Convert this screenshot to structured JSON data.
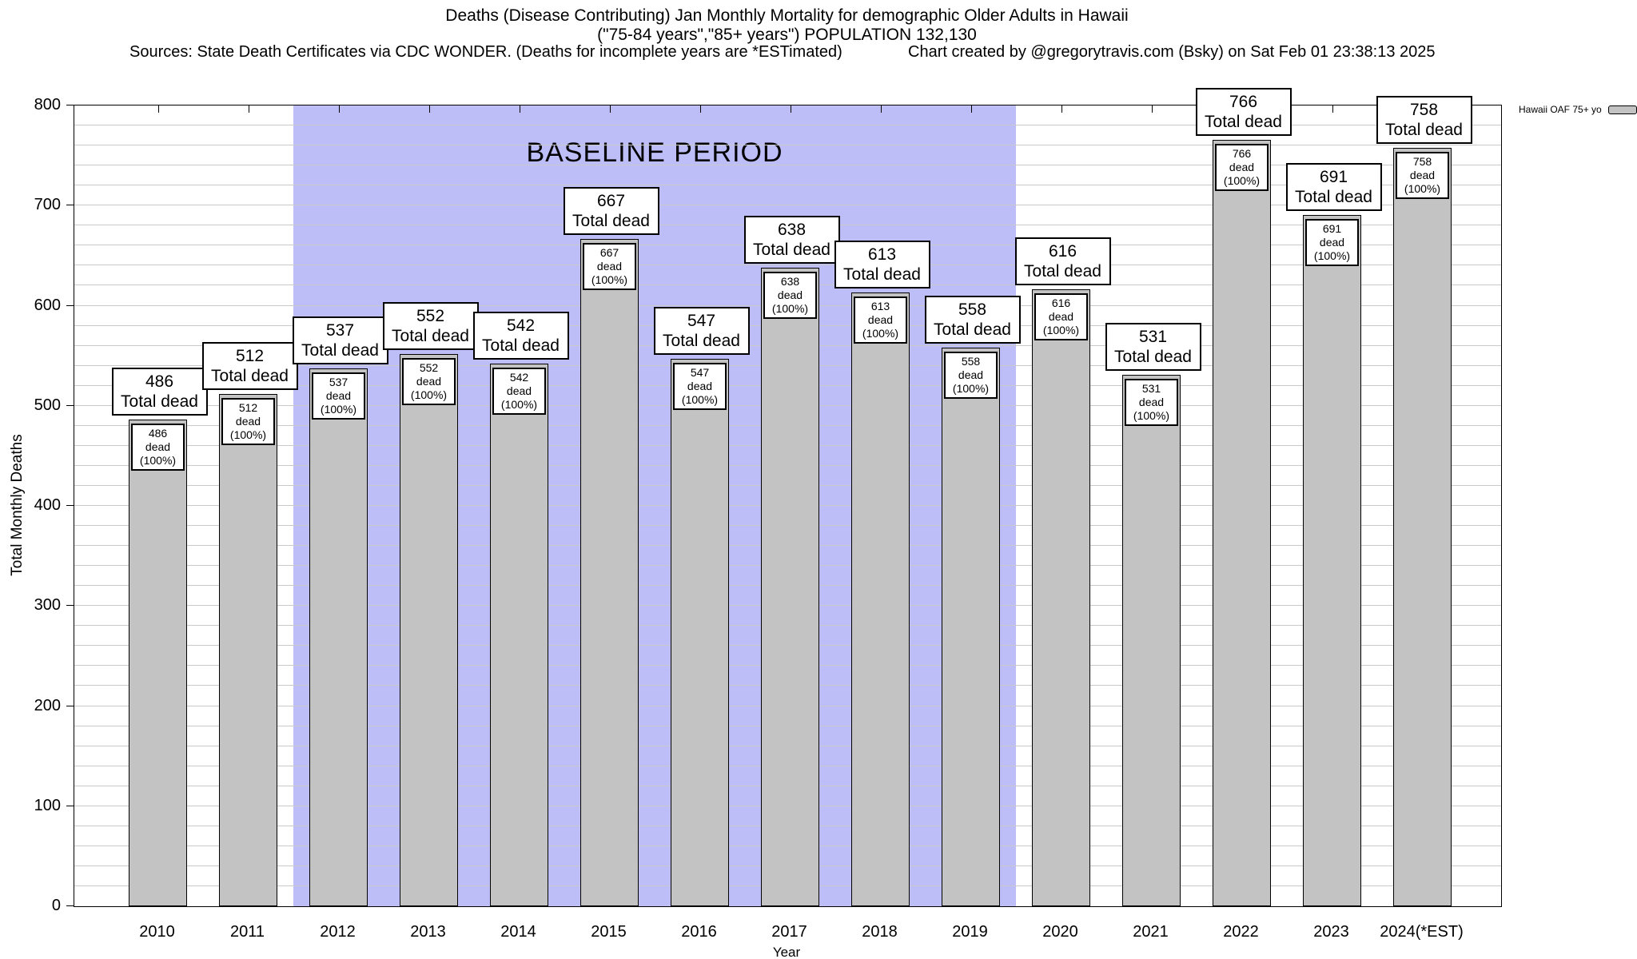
{
  "header": {
    "title_line1": "Deaths (Disease Contributing) Jan Monthly Mortality for demographic Older Adults in Hawaii",
    "title_line2": "(\"75-84 years\",\"85+ years\") POPULATION 132,130",
    "sources": "Sources: State Death Certificates via CDC WONDER. (Deaths for incomplete years are *ESTimated)",
    "credit": "Chart created by @gregorytravis.com (Bsky) on Sat Feb 01 23:38:13 2025"
  },
  "legend": {
    "label": "Hawaii OAF 75+ yo",
    "swatch_color": "#c3c3c3"
  },
  "chart_data": {
    "type": "bar",
    "title": "Deaths (Disease Contributing) Jan Monthly Mortality for demographic Older Adults in Hawaii",
    "xlabel": "Year",
    "ylabel": "Total Monthly Deaths",
    "ylim": [
      0,
      800
    ],
    "yticks": [
      0,
      100,
      200,
      300,
      400,
      500,
      600,
      700,
      800
    ],
    "minor_grid_step": 20,
    "grid": true,
    "legend_position": "top-right-outside",
    "categories": [
      "2010",
      "2011",
      "2012",
      "2013",
      "2014",
      "2015",
      "2016",
      "2017",
      "2018",
      "2019",
      "2020",
      "2021",
      "2022",
      "2023",
      "2024(*EST)"
    ],
    "series": [
      {
        "name": "Hawaii OAF 75+ yo",
        "values": [
          486,
          512,
          537,
          552,
          542,
          667,
          547,
          638,
          613,
          558,
          616,
          531,
          766,
          691,
          758
        ]
      }
    ],
    "bar_color": "#c3c3c3",
    "annotations": {
      "above_box_suffix": "Total dead",
      "inside_box_suffix": "dead (100%)"
    },
    "baseline_region": {
      "label": "BASELINE PERIOD",
      "from": "2012",
      "to": "2019",
      "color": "#bdbdf8"
    }
  }
}
